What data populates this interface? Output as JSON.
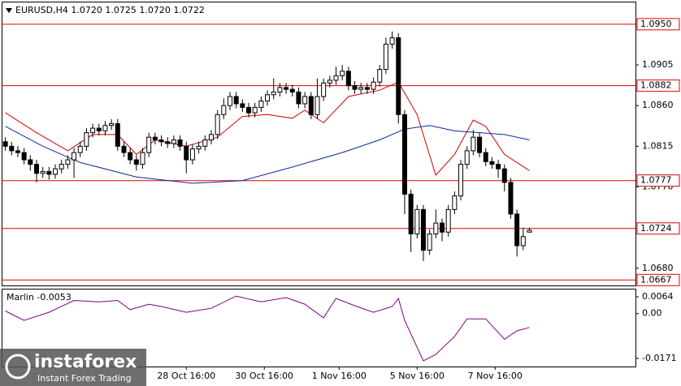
{
  "chart_data": {
    "type": "candlestick",
    "title": "EURUSD,H4  1.0720 1.0725 1.0720 1.0722",
    "logo": {
      "name": "instaforex",
      "tagline": "Instant Forex Trading"
    },
    "xlim": [
      -0.6,
      101
    ],
    "xticks": [
      {
        "value": 29,
        "label": "28 Oct 16:00"
      },
      {
        "value": 41.5,
        "label": "30 Oct 16:00"
      },
      {
        "value": 53.5,
        "label": "1 Nov 16:00"
      },
      {
        "value": 66,
        "label": "5 Nov 16:00"
      },
      {
        "value": 78.5,
        "label": "7 Nov 16:00"
      }
    ],
    "ylim": [
      1.0661,
      1.0975
    ],
    "yticks": [
      1.0905,
      {
        "value": 1.086,
        "label": "1.0860"
      },
      1.0815,
      {
        "value": 1.077,
        "label": "1.0770"
      },
      {
        "value": 1.068,
        "label": "1.0680"
      }
    ],
    "levels": [
      {
        "value": 1.095,
        "label": "1.0950"
      },
      1.0882,
      1.0777,
      1.0724,
      1.0667
    ],
    "level_color": "#e00000",
    "bull_color": "#ffffff",
    "bear_color": "#000000",
    "open": [
      1.082,
      1.0815,
      1.081,
      1.0808,
      1.08,
      1.0795,
      1.0785,
      1.0787,
      1.0784,
      1.079,
      1.0795,
      1.08,
      1.0808,
      1.0815,
      1.083,
      1.0835,
      1.0832,
      1.0838,
      1.084,
      1.0815,
      1.0808,
      1.08,
      1.0795,
      1.0808,
      1.0825,
      1.0822,
      1.082,
      1.0818,
      1.0822,
      1.0815,
      1.08,
      1.0812,
      1.0815,
      1.0822,
      1.0828,
      1.085,
      1.086,
      1.087,
      1.0862,
      1.0858,
      1.0852,
      1.0858,
      1.0865,
      1.0872,
      1.0875,
      1.088,
      1.0878,
      1.0875,
      1.0862,
      1.087,
      1.085,
      1.087,
      1.0885,
      1.0888,
      1.0893,
      1.0898,
      1.0882,
      1.0878,
      1.088,
      1.0878,
      1.0886,
      1.09,
      1.0928,
      1.0935,
      1.085,
      1.0762,
      1.0718,
      1.0745,
      1.07,
      1.0718,
      1.073,
      1.072,
      1.0745,
      1.076,
      1.0795,
      1.081,
      1.0825,
      1.0808,
      1.0798,
      1.0795,
      1.079,
      1.0775,
      1.074,
      1.0705,
      1.072
    ],
    "high": [
      1.0825,
      1.082,
      1.0815,
      1.0813,
      1.0805,
      1.08,
      1.0792,
      1.0792,
      1.0795,
      1.08,
      1.0805,
      1.0813,
      1.082,
      1.0835,
      1.084,
      1.084,
      1.0843,
      1.0845,
      1.0845,
      1.082,
      1.0813,
      1.0805,
      1.0813,
      1.083,
      1.083,
      1.0827,
      1.0825,
      1.0827,
      1.0827,
      1.082,
      1.0817,
      1.082,
      1.0827,
      1.0833,
      1.0855,
      1.0868,
      1.0875,
      1.0875,
      1.0867,
      1.0863,
      1.0863,
      1.087,
      1.0877,
      1.089,
      1.0885,
      1.0885,
      1.0883,
      1.088,
      1.0875,
      1.0875,
      1.089,
      1.089,
      1.0893,
      1.0903,
      1.0905,
      1.0903,
      1.0887,
      1.0885,
      1.0885,
      1.0891,
      1.0905,
      1.0935,
      1.0942,
      1.094,
      1.0855,
      1.0767,
      1.075,
      1.075,
      1.0723,
      1.0745,
      1.0735,
      1.075,
      1.0765,
      1.08,
      1.0815,
      1.0833,
      1.083,
      1.0813,
      1.0803,
      1.08,
      1.0795,
      1.078,
      1.0745,
      1.0725,
      1.0725
    ],
    "low": [
      1.081,
      1.0805,
      1.0803,
      1.0795,
      1.0788,
      1.0775,
      1.078,
      1.0778,
      1.0779,
      1.0785,
      1.079,
      1.078,
      1.0803,
      1.081,
      1.0825,
      1.0827,
      1.0827,
      1.0833,
      1.081,
      1.0803,
      1.0795,
      1.0788,
      1.079,
      1.0803,
      1.0817,
      1.0815,
      1.0813,
      1.0813,
      1.081,
      1.0785,
      1.0795,
      1.0807,
      1.081,
      1.0817,
      1.0823,
      1.0845,
      1.0855,
      1.0857,
      1.0853,
      1.0847,
      1.0847,
      1.0853,
      1.086,
      1.0867,
      1.087,
      1.0873,
      1.087,
      1.0857,
      1.0857,
      1.0845,
      1.0845,
      1.0865,
      1.088,
      1.0883,
      1.0888,
      1.0877,
      1.0873,
      1.0873,
      1.0873,
      1.0873,
      1.0881,
      1.0895,
      1.0923,
      1.084,
      1.074,
      1.0698,
      1.0713,
      1.0688,
      1.0695,
      1.0713,
      1.071,
      1.0715,
      1.074,
      1.0755,
      1.079,
      1.0805,
      1.0803,
      1.0793,
      1.079,
      1.078,
      1.0765,
      1.0735,
      1.0693,
      1.07,
      1.072
    ],
    "close": [
      1.0815,
      1.081,
      1.0808,
      1.08,
      1.0795,
      1.0785,
      1.0787,
      1.0784,
      1.079,
      1.0795,
      1.08,
      1.0808,
      1.0815,
      1.083,
      1.0835,
      1.0832,
      1.0838,
      1.084,
      1.0815,
      1.0808,
      1.08,
      1.0795,
      1.0808,
      1.0825,
      1.0822,
      1.082,
      1.0818,
      1.0822,
      1.0815,
      1.08,
      1.0812,
      1.0815,
      1.0822,
      1.0828,
      1.085,
      1.086,
      1.087,
      1.0862,
      1.0858,
      1.0852,
      1.0858,
      1.0865,
      1.0872,
      1.0875,
      1.088,
      1.0878,
      1.0875,
      1.0862,
      1.087,
      1.085,
      1.087,
      1.0885,
      1.0888,
      1.0893,
      1.0898,
      1.0882,
      1.0878,
      1.088,
      1.0878,
      1.0886,
      1.09,
      1.0928,
      1.0935,
      1.085,
      1.0762,
      1.0718,
      1.0745,
      1.07,
      1.0718,
      1.073,
      1.072,
      1.0745,
      1.076,
      1.0795,
      1.081,
      1.0825,
      1.0808,
      1.0798,
      1.0795,
      1.079,
      1.0775,
      1.074,
      1.0705,
      1.0715,
      1.0722
    ],
    "lines": [
      {
        "color": "#d00000",
        "x": [
          0,
          5,
          10,
          14,
          18,
          21,
          24,
          29,
          34,
          38,
          42,
          46,
          48,
          51,
          55,
          60,
          63,
          66,
          69,
          72,
          75,
          77,
          80,
          84
        ],
        "values": [
          1.0852,
          1.083,
          1.081,
          1.0828,
          1.0828,
          1.0806,
          1.0822,
          1.0815,
          1.0825,
          1.0848,
          1.085,
          1.0846,
          1.0855,
          1.0841,
          1.087,
          1.0877,
          1.0886,
          1.085,
          1.0783,
          1.0806,
          1.0844,
          1.0837,
          1.0806,
          1.0788
        ]
      },
      {
        "color": "#0a2a9a",
        "x": [
          0,
          6,
          12,
          21,
          30,
          38,
          46,
          54,
          60,
          64,
          68,
          72,
          76,
          80,
          84
        ],
        "values": [
          1.0837,
          1.0815,
          1.0797,
          1.0781,
          1.0774,
          1.0777,
          1.0792,
          1.0808,
          1.0822,
          1.0834,
          1.0838,
          1.0832,
          1.083,
          1.0828,
          1.0822
        ]
      }
    ],
    "indicator": {
      "name": "Marlin -0.0053",
      "color": "#800080",
      "ylim": [
        -0.0202,
        0.0095
      ],
      "yticks": [
        0.0064,
        {
          "value": 0,
          "label": "0.00"
        },
        -0.0171
      ],
      "x": [
        0,
        3,
        7,
        11,
        15,
        18,
        20,
        23,
        25,
        29,
        33,
        37,
        41,
        45,
        48,
        51,
        53,
        56,
        59,
        62,
        63,
        64,
        67,
        69,
        72,
        74,
        77,
        80,
        82,
        84
      ],
      "values": [
        0.001,
        -0.0026,
        0.0005,
        0.005,
        0.0045,
        0.005,
        0.0015,
        0.0036,
        0.0027,
        0.0005,
        0.002,
        0.0067,
        0.0045,
        0.0061,
        0.0036,
        -0.0016,
        0.0058,
        0.003,
        0.0005,
        0.0027,
        0.0058,
        -0.0026,
        -0.018,
        -0.0156,
        -0.0087,
        -0.002,
        -0.002,
        -0.0098,
        -0.0066,
        -0.0053
      ]
    }
  }
}
